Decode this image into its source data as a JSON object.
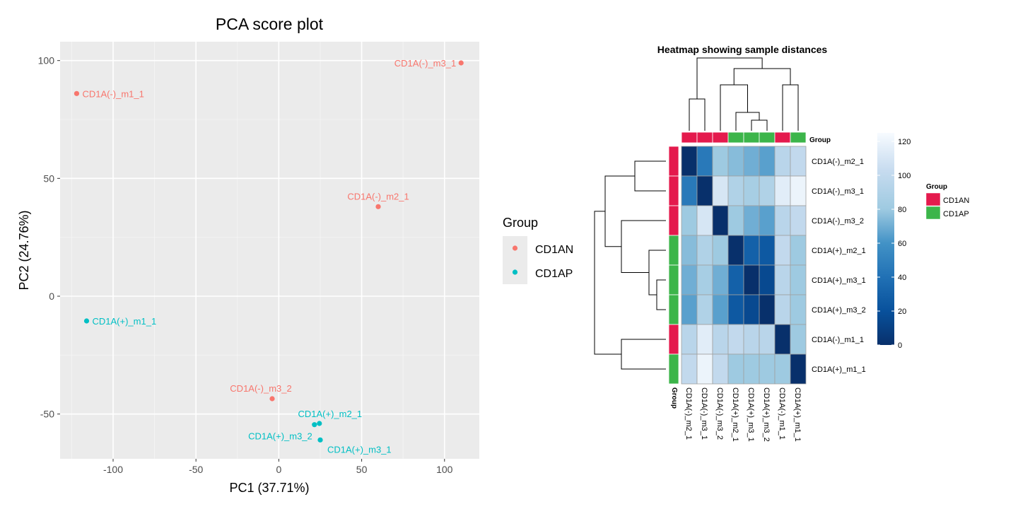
{
  "chart_data": [
    {
      "type": "scatter",
      "title": "PCA score plot",
      "xlabel": "PC1 (37.71%)",
      "ylabel": "PC2 (24.76%)",
      "xlim": [
        -132,
        121
      ],
      "ylim": [
        -69,
        108
      ],
      "xticks": [
        -100,
        -50,
        0,
        50,
        100
      ],
      "yticks": [
        -50,
        0,
        50,
        100
      ],
      "grid": true,
      "legend": {
        "title": "Group",
        "placement": "right",
        "entries": [
          {
            "label": "CD1AN",
            "color": "#F8766D"
          },
          {
            "label": "CD1AP",
            "color": "#00BFC4"
          }
        ]
      },
      "points": [
        {
          "label": "CD1A(-)_m3_1",
          "group": "CD1AN",
          "x": 110,
          "y": 99
        },
        {
          "label": "CD1A(-)_m1_1",
          "group": "CD1AN",
          "x": -122,
          "y": 86
        },
        {
          "label": "CD1A(-)_m2_1",
          "group": "CD1AN",
          "x": 60,
          "y": 38
        },
        {
          "label": "CD1A(+)_m1_1",
          "group": "CD1AP",
          "x": -116,
          "y": -10.5
        },
        {
          "label": "CD1A(-)_m3_2",
          "group": "CD1AN",
          "x": -4,
          "y": -43.5
        },
        {
          "label": "CD1A(+)_m2_1",
          "group": "CD1AP",
          "x": 24.5,
          "y": -54
        },
        {
          "label": "CD1A(+)_m3_2",
          "group": "CD1AP",
          "x": 21.5,
          "y": -54.5
        },
        {
          "label": "CD1A(+)_m3_1",
          "group": "CD1AP",
          "x": 25,
          "y": -61
        }
      ]
    },
    {
      "type": "heatmap",
      "title": "Heatmap showing sample distances",
      "row_labels": [
        "CD1A(-)_m2_1",
        "CD1A(-)_m3_1",
        "CD1A(-)_m3_2",
        "CD1A(+)_m2_1",
        "CD1A(+)_m3_1",
        "CD1A(+)_m3_2",
        "CD1A(-)_m1_1",
        "CD1A(+)_m1_1"
      ],
      "col_labels": [
        "CD1A(-)_m2_1",
        "CD1A(-)_m3_1",
        "CD1A(-)_m3_2",
        "CD1A(+)_m2_1",
        "CD1A(+)_m3_1",
        "CD1A(+)_m3_2",
        "CD1A(-)_m1_1",
        "CD1A(+)_m1_1"
      ],
      "groups": [
        "CD1AN",
        "CD1AN",
        "CD1AN",
        "CD1AP",
        "CD1AP",
        "CD1AP",
        "CD1AN",
        "CD1AP"
      ],
      "values": [
        [
          0,
          45,
          80,
          75,
          70,
          65,
          95,
          100
        ],
        [
          45,
          0,
          110,
          90,
          85,
          90,
          115,
          120
        ],
        [
          80,
          110,
          0,
          80,
          70,
          65,
          95,
          100
        ],
        [
          75,
          90,
          80,
          0,
          30,
          25,
          100,
          80
        ],
        [
          70,
          85,
          70,
          30,
          0,
          15,
          95,
          80
        ],
        [
          65,
          90,
          65,
          25,
          15,
          0,
          95,
          80
        ],
        [
          95,
          115,
          95,
          100,
          95,
          95,
          0,
          80
        ],
        [
          100,
          120,
          100,
          80,
          80,
          80,
          80,
          0
        ]
      ],
      "colorbar": {
        "min": 0,
        "max": 125,
        "ticks": [
          0,
          20,
          40,
          60,
          80,
          100,
          120
        ]
      },
      "annotation_label": "Group",
      "annotation_legend": {
        "title": "Group",
        "entries": [
          {
            "label": "CD1AN",
            "color": "#E41A4D"
          },
          {
            "label": "CD1AP",
            "color": "#3CB54A"
          }
        ]
      }
    }
  ]
}
